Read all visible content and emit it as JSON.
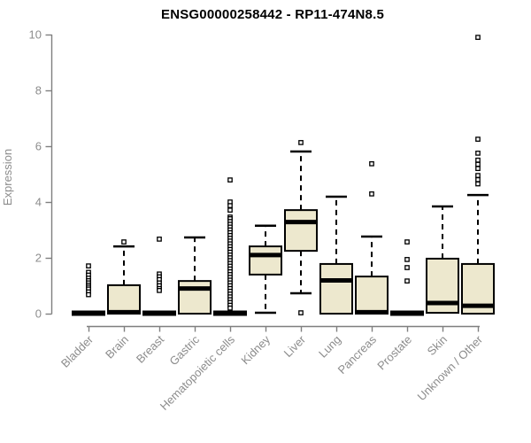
{
  "chart_data": {
    "type": "boxplot",
    "title": "ENSG00000258442 - RP11-474N8.5",
    "ylabel": "Expression",
    "xlabel": "",
    "ylim": [
      0,
      10
    ],
    "yticks": [
      0,
      2,
      4,
      6,
      8,
      10
    ],
    "grid": false,
    "legend": "none",
    "boxes": [
      {
        "category": "Bladder",
        "low": 0,
        "q1": 0,
        "median": 0,
        "q3": 0,
        "high": 0,
        "outliers": [
          1.71,
          1.48,
          1.38,
          1.27,
          1.18,
          1.1,
          1.02,
          0.95,
          0.88,
          0.78,
          0.68
        ]
      },
      {
        "category": "Brain",
        "low": 0,
        "q1": 0,
        "median": 0.05,
        "q3": 1.02,
        "high": 2.41,
        "outliers": [
          2.57
        ]
      },
      {
        "category": "Breast",
        "low": 0,
        "q1": 0,
        "median": 0,
        "q3": 0,
        "high": 0,
        "outliers": [
          2.67,
          1.42,
          1.32,
          1.22,
          1.1,
          1.0,
          0.9,
          0.83
        ]
      },
      {
        "category": "Gastric",
        "low": 0,
        "q1": 0,
        "median": 0.9,
        "q3": 1.17,
        "high": 2.73,
        "outliers": []
      },
      {
        "category": "Hematopoietic cells",
        "low": 0,
        "q1": 0,
        "median": 0,
        "q3": 0,
        "high": 0,
        "outliers": [
          4.79,
          4.0,
          3.87,
          3.71,
          3.46,
          3.4,
          3.3,
          3.2,
          3.1,
          3.0,
          2.9,
          2.8,
          2.7,
          2.6,
          2.5,
          2.4,
          2.3,
          2.2,
          2.1,
          2.0,
          1.9,
          1.8,
          1.7,
          1.6,
          1.5,
          1.4,
          1.3,
          1.2,
          1.1,
          1.0,
          0.9,
          0.8,
          0.7,
          0.6,
          0.5,
          0.4,
          0.3,
          0.2
        ]
      },
      {
        "category": "Kidney",
        "low": 0.03,
        "q1": 1.4,
        "median": 2.1,
        "q3": 2.41,
        "high": 3.15,
        "outliers": []
      },
      {
        "category": "Liver",
        "low": 0.73,
        "q1": 2.25,
        "median": 3.28,
        "q3": 3.71,
        "high": 5.81,
        "outliers": [
          6.13,
          0.03
        ]
      },
      {
        "category": "Lung",
        "low": 0,
        "q1": 0,
        "median": 1.19,
        "q3": 1.78,
        "high": 4.19,
        "outliers": []
      },
      {
        "category": "Pancreas",
        "low": 0,
        "q1": 0,
        "median": 0.05,
        "q3": 1.33,
        "high": 2.76,
        "outliers": [
          5.37,
          4.29
        ]
      },
      {
        "category": "Prostate",
        "low": 0,
        "q1": 0,
        "median": 0,
        "q3": 0,
        "high": 0,
        "outliers": [
          2.57,
          1.94,
          1.65,
          1.17
        ]
      },
      {
        "category": "Skin",
        "low": 0.03,
        "q1": 0.03,
        "median": 0.38,
        "q3": 1.97,
        "high": 3.84,
        "outliers": []
      },
      {
        "category": "Unknown / Other",
        "low": 0,
        "q1": 0,
        "median": 0.28,
        "q3": 1.78,
        "high": 4.25,
        "outliers": [
          9.9,
          6.25,
          5.75,
          5.5,
          5.35,
          5.2,
          4.95,
          4.8,
          4.65
        ]
      }
    ],
    "colors": {
      "box_fill": "#EDE8CE",
      "box_stroke": "#000000",
      "median": "#000000",
      "whisker": "#000000",
      "outlier_stroke": "#000000",
      "outlier_fill": "#ffffff",
      "axis": "#7f7f7f",
      "tick_label": "#8c8c8c",
      "title": "#000000",
      "background": "#ffffff"
    }
  }
}
